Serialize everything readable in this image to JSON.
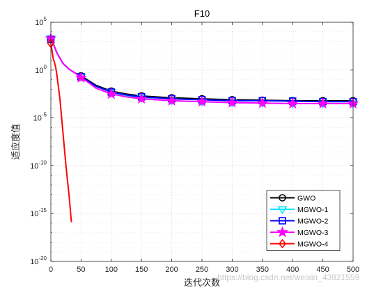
{
  "chart_data": {
    "type": "line",
    "title": "F10",
    "xlabel": "迭代次数",
    "ylabel": "适应度值",
    "xlim": [
      0,
      500
    ],
    "ylim_exponent": [
      -20,
      5
    ],
    "yscale": "log",
    "grid": true,
    "legend_position": "bottom-right",
    "x_ticks": [
      "0",
      "50",
      "100",
      "150",
      "200",
      "250",
      "300",
      "350",
      "400",
      "450",
      "500"
    ],
    "y_ticks": [
      {
        "base": "10",
        "exp": "5"
      },
      {
        "base": "10",
        "exp": "0"
      },
      {
        "base": "10",
        "exp": "-5"
      },
      {
        "base": "10",
        "exp": "-10"
      },
      {
        "base": "10",
        "exp": "-15"
      },
      {
        "base": "10",
        "exp": "-20"
      }
    ],
    "series": [
      {
        "name": "GWO",
        "color": "#000000",
        "marker": "circle",
        "x": [
          0,
          5,
          10,
          20,
          30,
          40,
          50,
          60,
          75,
          100,
          125,
          150,
          175,
          200,
          250,
          300,
          350,
          400,
          450,
          500
        ],
        "log10_y": [
          3.2,
          2.6,
          1.8,
          0.7,
          0.1,
          -0.3,
          -0.6,
          -1.0,
          -1.6,
          -2.2,
          -2.5,
          -2.7,
          -2.8,
          -2.9,
          -3.0,
          -3.1,
          -3.15,
          -3.2,
          -3.2,
          -3.2
        ]
      },
      {
        "name": "MGWO-1",
        "color": "#00e5ff",
        "marker": "triangle-down",
        "x": [
          0,
          5,
          10,
          20,
          30,
          40,
          50,
          60,
          75,
          100,
          125,
          150,
          175,
          200,
          250,
          300,
          350,
          400,
          450,
          500
        ],
        "log10_y": [
          3.3,
          2.6,
          1.8,
          0.7,
          0.1,
          -0.3,
          -0.7,
          -1.1,
          -1.7,
          -2.3,
          -2.7,
          -2.9,
          -3.1,
          -3.2,
          -3.3,
          -3.4,
          -3.45,
          -3.5,
          -3.5,
          -3.5
        ]
      },
      {
        "name": "MGWO-2",
        "color": "#0000ff",
        "marker": "square",
        "x": [
          0,
          5,
          10,
          20,
          30,
          40,
          50,
          60,
          75,
          100,
          125,
          150,
          175,
          200,
          250,
          300,
          350,
          400,
          450,
          500
        ],
        "log10_y": [
          3.2,
          2.6,
          1.8,
          0.7,
          0.1,
          -0.3,
          -0.7,
          -1.1,
          -1.7,
          -2.3,
          -2.6,
          -2.8,
          -2.9,
          -3.0,
          -3.1,
          -3.2,
          -3.2,
          -3.25,
          -3.3,
          -3.3
        ]
      },
      {
        "name": "MGWO-3",
        "color": "#ff00ff",
        "marker": "star",
        "x": [
          0,
          5,
          10,
          20,
          30,
          40,
          50,
          60,
          75,
          100,
          125,
          150,
          175,
          200,
          250,
          300,
          350,
          400,
          450,
          500
        ],
        "log10_y": [
          3.3,
          2.6,
          1.8,
          0.7,
          0.1,
          -0.3,
          -0.8,
          -1.2,
          -1.9,
          -2.5,
          -2.8,
          -3.0,
          -3.1,
          -3.2,
          -3.3,
          -3.4,
          -3.45,
          -3.5,
          -3.5,
          -3.5
        ]
      },
      {
        "name": "MGWO-4",
        "color": "#ff0000",
        "marker": "diamond",
        "x": [
          0,
          2,
          4,
          6,
          8,
          10,
          15,
          20,
          25,
          30,
          34
        ],
        "log10_y": [
          2.8,
          2.0,
          1.2,
          0.8,
          0.3,
          -0.5,
          -3.0,
          -6.5,
          -10.0,
          -13.0,
          -15.9
        ]
      }
    ]
  },
  "watermark": "https://blog.csdn.net/weixin_43821559"
}
